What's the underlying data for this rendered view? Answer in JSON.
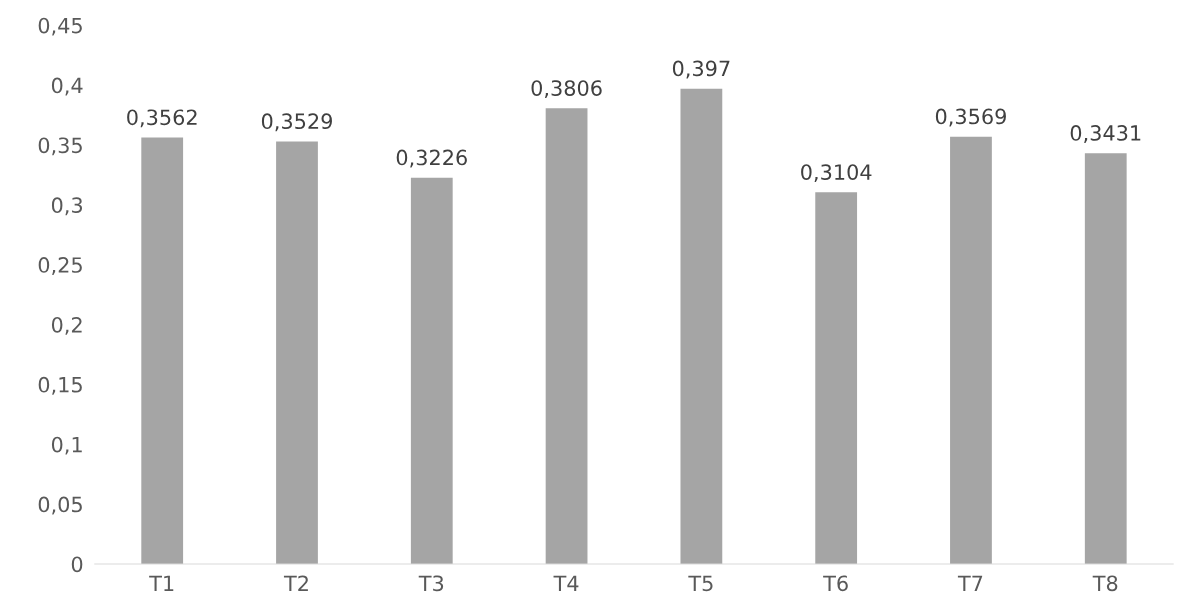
{
  "chart_data": {
    "type": "bar",
    "categories": [
      "T1",
      "T2",
      "T3",
      "T4",
      "T5",
      "T6",
      "T7",
      "T8"
    ],
    "values": [
      0.3562,
      0.3529,
      0.3226,
      0.3806,
      0.397,
      0.3104,
      0.3569,
      0.3431
    ],
    "value_labels": [
      "0,3562",
      "0,3529",
      "0,3226",
      "0,3806",
      "0,397",
      "0,3104",
      "0,3569",
      "0,3431"
    ],
    "color": "#a5a5a5",
    "ylim": [
      0,
      0.45
    ],
    "yticks": [
      {
        "value": 0,
        "label": "0"
      },
      {
        "value": 0.05,
        "label": "0,05"
      },
      {
        "value": 0.1,
        "label": "0,1"
      },
      {
        "value": 0.15,
        "label": "0,15"
      },
      {
        "value": 0.2,
        "label": "0,2"
      },
      {
        "value": 0.25,
        "label": "0,25"
      },
      {
        "value": 0.3,
        "label": "0,3"
      },
      {
        "value": 0.35,
        "label": "0,35"
      },
      {
        "value": 0.4,
        "label": "0,4"
      },
      {
        "value": 0.45,
        "label": "0,45"
      }
    ],
    "grid": false,
    "legend": false
  }
}
